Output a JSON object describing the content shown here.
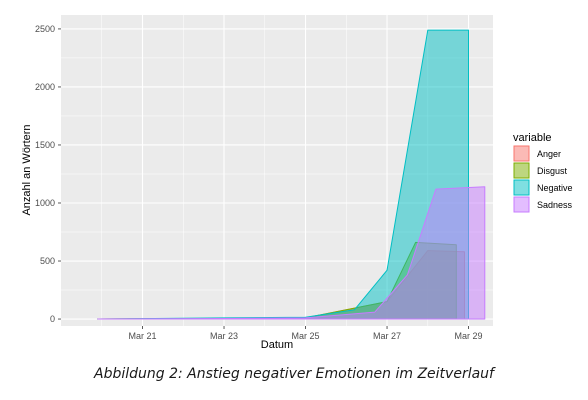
{
  "caption": "Abbildung 2: Anstieg negativer Emotionen im Zeitverlauf",
  "chart_data": {
    "type": "area",
    "title": "",
    "xlabel": "Datum",
    "ylabel": "Anzahl an Wörtern",
    "x_ticks": [
      "Mar 21",
      "Mar 23",
      "Mar 25",
      "Mar 27",
      "Mar 29"
    ],
    "y_ticks": [
      0,
      500,
      1000,
      1500,
      2000,
      2500
    ],
    "xlim": [
      "2020-03-19",
      "2020-03-29.6"
    ],
    "ylim": [
      -60,
      2620
    ],
    "grid": true,
    "legend": {
      "title": "variable",
      "position": "right"
    },
    "series": [
      {
        "name": "Anger",
        "color": "#F8766D",
        "points": [
          [
            "2020-03-19.9",
            0
          ],
          [
            "2020-03-23",
            5
          ],
          [
            "2020-03-25",
            10
          ],
          [
            "2020-03-27",
            150
          ],
          [
            "2020-03-28",
            590
          ],
          [
            "2020-03-28.9",
            580
          ],
          [
            "2020-03-28.9",
            0
          ]
        ]
      },
      {
        "name": "Disgust",
        "color": "#7CAE00",
        "points": [
          [
            "2020-03-19.9",
            0
          ],
          [
            "2020-03-23",
            5
          ],
          [
            "2020-03-25",
            10
          ],
          [
            "2020-03-27",
            150
          ],
          [
            "2020-03-27.7",
            660
          ],
          [
            "2020-03-28.7",
            640
          ],
          [
            "2020-03-28.7",
            0
          ]
        ]
      },
      {
        "name": "Negative",
        "color": "#00BFC4",
        "points": [
          [
            "2020-03-19.9",
            0
          ],
          [
            "2020-03-23",
            10
          ],
          [
            "2020-03-25",
            15
          ],
          [
            "2020-03-26.2",
            80
          ],
          [
            "2020-03-27",
            420
          ],
          [
            "2020-03-28",
            2490
          ],
          [
            "2020-03-29",
            2490
          ],
          [
            "2020-03-29",
            0
          ]
        ]
      },
      {
        "name": "Sadness",
        "color": "#C77CFF",
        "points": [
          [
            "2020-03-19.9",
            0
          ],
          [
            "2020-03-23",
            5
          ],
          [
            "2020-03-25",
            10
          ],
          [
            "2020-03-26.7",
            60
          ],
          [
            "2020-03-27.5",
            380
          ],
          [
            "2020-03-28.2",
            1120
          ],
          [
            "2020-03-29.4",
            1140
          ],
          [
            "2020-03-29.4",
            0
          ]
        ]
      }
    ]
  }
}
